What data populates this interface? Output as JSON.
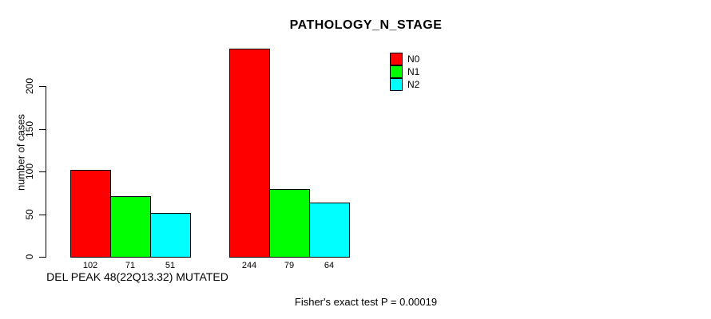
{
  "chart_data": {
    "type": "bar",
    "title": "PATHOLOGY_N_STAGE",
    "ylabel": "number of cases",
    "xlabel": "DEL PEAK 48(22Q13.32) MUTATED",
    "footnote": "Fisher's exact test P = 0.00019",
    "ylim": [
      0,
      200
    ],
    "yticks": [
      0,
      50,
      100,
      150,
      200
    ],
    "grid": false,
    "legend_position": "top-right",
    "bar_value_labels_shown": true,
    "categories": [
      "DEL PEAK 48(22Q13.32) MUTATED",
      ""
    ],
    "series": [
      {
        "name": "N0",
        "color": "#FF0000",
        "values": [
          102,
          244
        ]
      },
      {
        "name": "N1",
        "color": "#00FF00",
        "values": [
          71,
          79
        ]
      },
      {
        "name": "N2",
        "color": "#00FFFF",
        "values": [
          51,
          64
        ]
      }
    ],
    "groups": [
      {
        "values": [
          102,
          71,
          51
        ]
      },
      {
        "values": [
          244,
          79,
          64
        ]
      }
    ],
    "axis_color": "#000000",
    "background_color": "#FFFFFF"
  }
}
